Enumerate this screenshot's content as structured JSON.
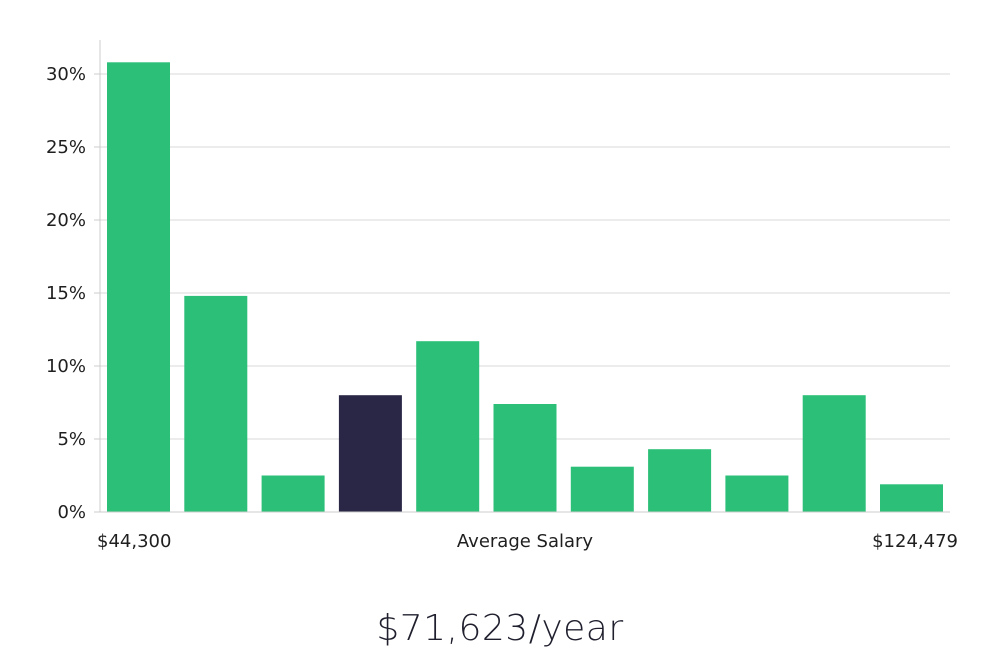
{
  "chart_data": {
    "type": "bar",
    "title": "",
    "ylabel": "",
    "xlabel": "Average Salary",
    "x_range_labels": {
      "min": "$44,300",
      "max": "$124,479"
    },
    "y_ticks": [
      "0%",
      "5%",
      "10%",
      "15%",
      "20%",
      "25%",
      "30%"
    ],
    "ylim": [
      0,
      32.5
    ],
    "values": [
      30.8,
      14.8,
      2.5,
      8.0,
      11.7,
      7.4,
      3.1,
      4.3,
      2.5,
      8.0,
      1.9
    ],
    "highlight_index": 3,
    "colors": {
      "bar": "#2bbf78",
      "highlight": "#2a2746",
      "grid": "#d9d9d9",
      "axis": "#cccccc"
    }
  },
  "summary": {
    "salary": "$71,623/year"
  }
}
